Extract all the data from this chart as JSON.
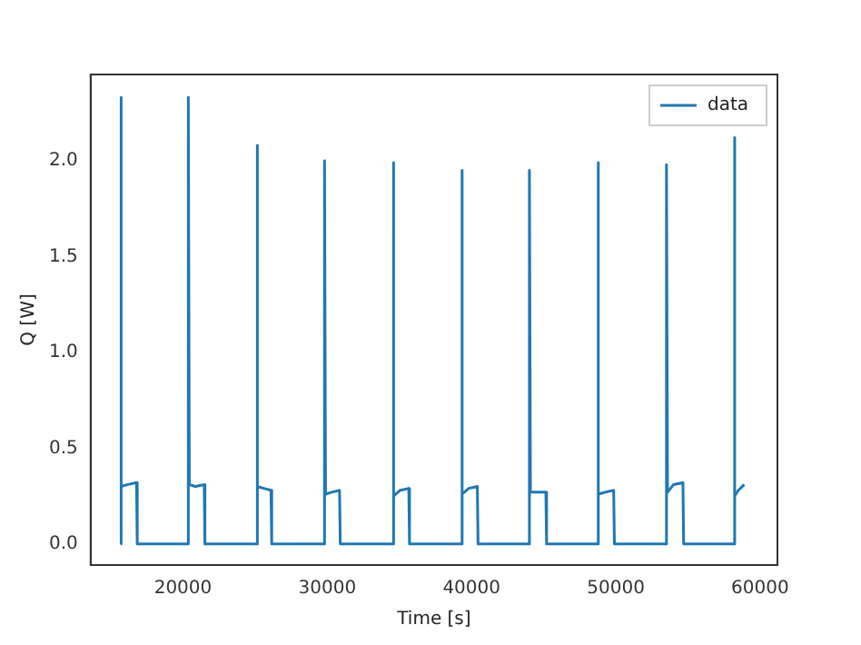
{
  "chart_data": {
    "type": "line",
    "xlabel": "Time [s]",
    "ylabel": "Q [W]",
    "x": [
      15670,
      15680,
      15750,
      16170,
      16780,
      16830,
      20360,
      20370,
      20440,
      20860,
      21470,
      21520,
      25110,
      25120,
      25190,
      25610,
      26100,
      26150,
      29800,
      29810,
      29880,
      30300,
      30850,
      30900,
      34550,
      34560,
      34630,
      35050,
      35650,
      35700,
      39300,
      39310,
      39380,
      39800,
      40400,
      40450,
      44000,
      44010,
      44080,
      44500,
      45150,
      45200,
      48740,
      48750,
      48820,
      49240,
      49850,
      49900,
      53500,
      53510,
      53580,
      54000,
      54650,
      54700,
      58190,
      58200,
      58270,
      58490,
      58900
    ],
    "series": [
      {
        "name": "data",
        "color": "#1f77b4",
        "values": [
          0,
          2.33,
          0.3,
          0.31,
          0.32,
          0,
          0,
          2.33,
          0.31,
          0.3,
          0.31,
          0,
          0,
          2.08,
          0.3,
          0.29,
          0.28,
          0,
          0,
          2.0,
          0.26,
          0.27,
          0.28,
          0,
          0,
          1.99,
          0.25,
          0.28,
          0.29,
          0,
          0,
          1.95,
          0.26,
          0.29,
          0.3,
          0,
          0,
          1.95,
          0.27,
          0.27,
          0.27,
          0,
          0,
          1.99,
          0.26,
          0.27,
          0.28,
          0,
          0,
          1.98,
          0.27,
          0.31,
          0.32,
          0,
          0,
          2.12,
          0.25,
          0.28,
          0.31
        ]
      }
    ],
    "xlim": [
      13600,
      61200
    ],
    "xticks": [
      20000,
      30000,
      40000,
      50000,
      60000
    ],
    "ylim": [
      -0.11,
      2.45
    ],
    "yticks": [
      {
        "value": 0,
        "label": "0.0"
      },
      0.5,
      {
        "value": 1,
        "label": "1.0"
      },
      1.5,
      {
        "value": 2,
        "label": "2.0"
      }
    ],
    "legend": "top right",
    "marker": "none",
    "line_style": "solid"
  }
}
